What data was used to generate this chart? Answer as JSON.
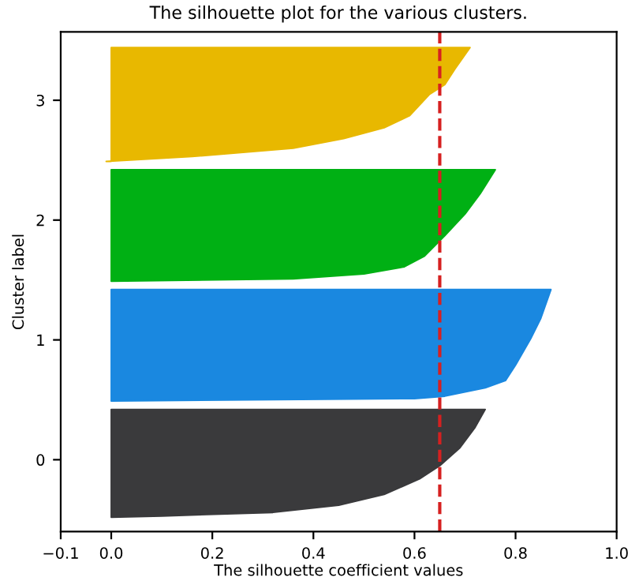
{
  "chart_data": {
    "type": "area",
    "orientation": "horizontal",
    "title": "The silhouette plot for the various clusters.",
    "xlabel": "The silhouette coefficient values",
    "ylabel": "Cluster label",
    "xlim": [
      -0.1,
      1.0
    ],
    "xticks": [
      {
        "value": -0.1,
        "label": "−0.1"
      },
      {
        "value": 0.0,
        "label": "0.0"
      },
      0.2,
      0.4,
      0.6,
      0.8,
      {
        "value": 1.0,
        "label": "1.0"
      }
    ],
    "ylim": [
      -0.6,
      3.57
    ],
    "yticks": [
      0,
      1,
      2,
      3
    ],
    "series": [
      {
        "color": "#3a3a3c",
        "x": [
          -0.48,
          -0.47,
          -0.44,
          -0.38,
          -0.29,
          -0.16,
          -0.05,
          0.1,
          0.27,
          0.42
        ],
        "values": [
          0.0,
          0.1,
          0.32,
          0.45,
          0.54,
          0.61,
          0.65,
          0.69,
          0.72,
          0.74
        ]
      },
      {
        "color": "#1a88e0",
        "x": [
          0.49,
          0.51,
          0.53,
          0.6,
          0.66,
          0.79,
          1.01,
          1.18,
          1.42
        ],
        "values": [
          0.0,
          0.6,
          0.66,
          0.74,
          0.78,
          0.8,
          0.83,
          0.85,
          0.87
        ]
      },
      {
        "color": "#00b014",
        "x": [
          1.49,
          1.51,
          1.55,
          1.61,
          1.7,
          1.87,
          2.05,
          2.22,
          2.42
        ],
        "values": [
          0.0,
          0.36,
          0.5,
          0.58,
          0.62,
          0.66,
          0.7,
          0.73,
          0.76
        ]
      },
      {
        "color": "#e8b800",
        "x": [
          2.49,
          2.53,
          2.6,
          2.68,
          2.77,
          2.87,
          3.05,
          3.13,
          3.26,
          3.44
        ],
        "values": [
          -0.01,
          0.16,
          0.36,
          0.46,
          0.54,
          0.59,
          0.63,
          0.66,
          0.68,
          0.71
        ]
      }
    ],
    "ref_lines": [
      {
        "axis": "x",
        "value": 0.65,
        "color": "#d62020",
        "line_style": "dashed"
      }
    ],
    "grid": false
  }
}
